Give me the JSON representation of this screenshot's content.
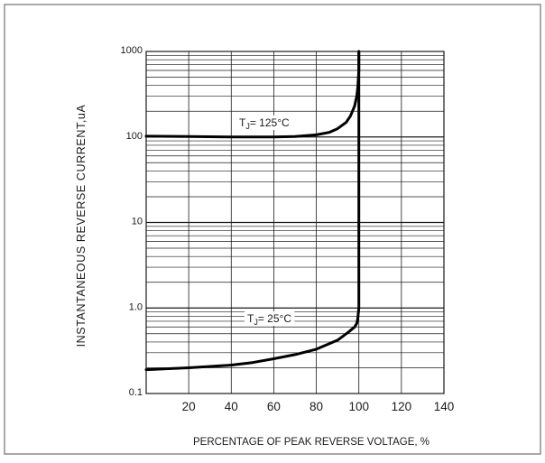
{
  "chart_data": {
    "type": "line",
    "xlabel": "PERCENTAGE OF PEAK REVERSE VOLTAGE, %",
    "ylabel": "INSTANTANEOUS REVERSE CURRENT,uA",
    "xlim": [
      0,
      140
    ],
    "ylim": [
      0.1,
      1000
    ],
    "yscale": "log",
    "grid": true,
    "x_ticks": [
      "20",
      "40",
      "60",
      "80",
      "100",
      "120",
      "140"
    ],
    "y_ticks": [
      "0.1",
      "1.0",
      "10",
      "100",
      "1000"
    ],
    "series": [
      {
        "name": "TJ= 125°C",
        "label_sub": "J",
        "x": [
          0,
          20,
          40,
          60,
          70,
          80,
          86,
          90,
          94,
          96,
          98,
          99,
          99.5,
          100,
          100
        ],
        "y": [
          102,
          101,
          100,
          100,
          101,
          106,
          113,
          125,
          148,
          175,
          230,
          300,
          380,
          600,
          1000
        ]
      },
      {
        "name": "TJ= 25°C",
        "label_sub": "J",
        "x": [
          0,
          20,
          40,
          50,
          60,
          70,
          80,
          90,
          95,
          98,
          99,
          99.5,
          100,
          100,
          100
        ],
        "y": [
          0.19,
          0.2,
          0.215,
          0.23,
          0.255,
          0.285,
          0.33,
          0.42,
          0.52,
          0.6,
          0.66,
          0.75,
          1.0,
          10,
          1000
        ]
      }
    ]
  }
}
